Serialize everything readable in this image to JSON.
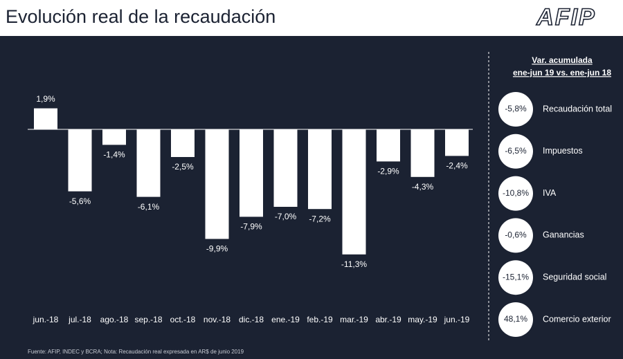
{
  "header": {
    "title": "Evolución real de la recaudación",
    "logo": "AFIP"
  },
  "chart_data": {
    "type": "bar",
    "categories": [
      "jun.-18",
      "jul.-18",
      "ago.-18",
      "sep.-18",
      "oct.-18",
      "nov.-18",
      "dic.-18",
      "ene.-19",
      "feb.-19",
      "mar.-19",
      "abr.-19",
      "may.-19",
      "jun.-19"
    ],
    "values": [
      1.9,
      -5.6,
      -1.4,
      -6.1,
      -2.5,
      -9.9,
      -7.9,
      -7.0,
      -7.2,
      -11.3,
      -2.9,
      -4.3,
      -2.4
    ],
    "value_labels": [
      "1,9%",
      "-5,6%",
      "-1,4%",
      "-6,1%",
      "-2,5%",
      "-9,9%",
      "-7,9%",
      "-7,0%",
      "-7,2%",
      "-11,3%",
      "-2,9%",
      "-4,3%",
      "-2,4%"
    ],
    "color": "#ffffff"
  },
  "panel": {
    "title_lines": [
      "Var. acumulada",
      "ene-jun 19 vs. ene-jun 18"
    ],
    "items": [
      {
        "value": "-5,8%",
        "name": "Recaudación total"
      },
      {
        "value": "-6,5%",
        "name": "Impuestos"
      },
      {
        "value": "-10,8%",
        "name": "IVA"
      },
      {
        "value": "-0,6%",
        "name": "Ganancias"
      },
      {
        "value": "-15,1%",
        "name": "Seguridad social"
      },
      {
        "value": "48,1%",
        "name": "Comercio exterior"
      }
    ]
  },
  "footer": "Fuente: AFIP, INDEC y BCRA; Nota: Recaudación real expresada en AR$ de junio 2019"
}
